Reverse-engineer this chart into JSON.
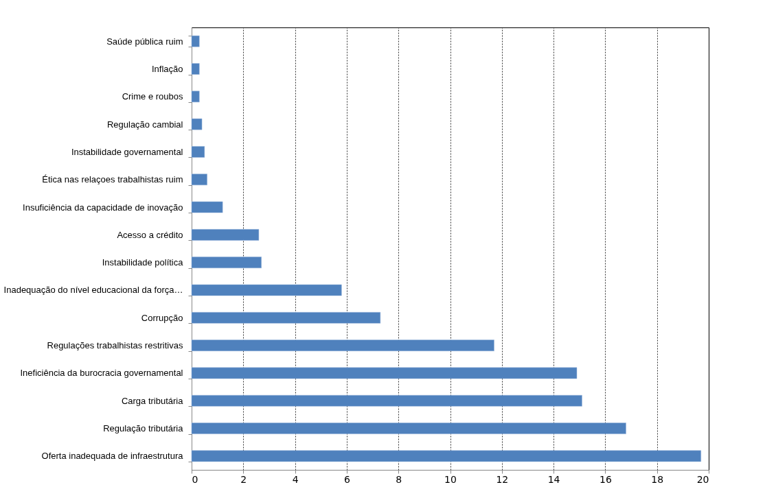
{
  "chart_data": {
    "type": "bar",
    "orientation": "horizontal",
    "categories": [
      "Saúde pública ruim",
      "Inflação",
      "Crime e roubos",
      "Regulação cambial",
      "Instabilidade governamental",
      "Ética nas relaçoes trabalhistas ruim",
      "Insuficiência da capacidade de inovação",
      "Acesso a crédito",
      "Instabilidade política",
      "Inadequação do nível educacional da força…",
      "Corrupção",
      "Regulações trabalhistas restritivas",
      "Ineficiência da burocracia governamental",
      "Carga tributária",
      "Regulação tributária",
      "Oferta inadequada de infraestrutura"
    ],
    "values": [
      0.3,
      0.3,
      0.3,
      0.4,
      0.5,
      0.6,
      1.2,
      2.6,
      2.7,
      5.8,
      7.3,
      11.7,
      14.9,
      15.1,
      16.8,
      19.7
    ],
    "color": "#4f81bd",
    "xlim": [
      0,
      20
    ],
    "xticks": [
      0,
      2,
      4,
      6,
      8,
      10,
      12,
      14,
      16,
      18,
      20
    ],
    "grid": "x"
  }
}
